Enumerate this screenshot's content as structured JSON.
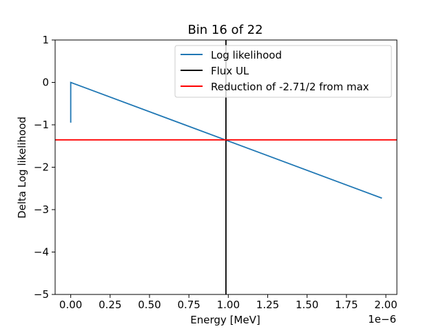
{
  "chart_data": {
    "type": "line",
    "title": "Bin 16 of 22",
    "xlabel": "Energy [MeV]",
    "ylabel": "Delta Log likelihood",
    "x_offset_label": "1e−6",
    "xlim": [
      -0.099,
      2.07
    ],
    "ylim": [
      -5,
      1
    ],
    "x_ticks": [
      0.0,
      0.25,
      0.5,
      0.75,
      1.0,
      1.25,
      1.5,
      1.75,
      2.0
    ],
    "x_tick_labels": [
      "0.00",
      "0.25",
      "0.50",
      "0.75",
      "1.00",
      "1.25",
      "1.50",
      "1.75",
      "2.00"
    ],
    "y_ticks": [
      1,
      0,
      -1,
      -2,
      -3,
      -4,
      -5
    ],
    "y_tick_labels": [
      "1",
      "0",
      "−1",
      "−2",
      "−3",
      "−4",
      "−5"
    ],
    "grid": false,
    "legend_position": "top-right",
    "series": [
      {
        "name": "Log likelihood",
        "color": "#1f77b4",
        "kind": "line",
        "x": [
          0.0,
          0.0,
          1.975
        ],
        "y": [
          -0.95,
          0.0,
          -2.73
        ]
      },
      {
        "name": "Flux UL",
        "color": "#000000",
        "kind": "vline",
        "x": 0.985
      },
      {
        "name": "Reduction of -2.71/2 from max",
        "color": "#ff0000",
        "kind": "hline",
        "y": -1.355
      }
    ]
  }
}
